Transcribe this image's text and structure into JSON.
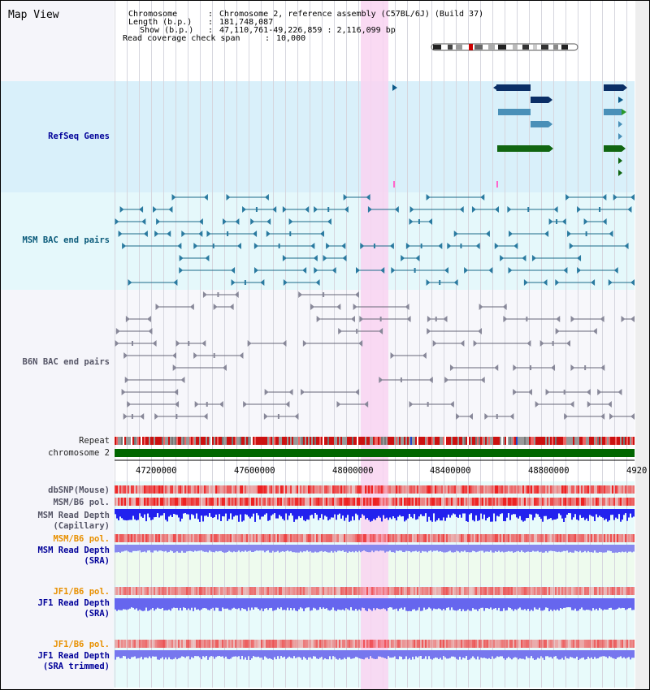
{
  "view_title": "Map View",
  "header": {
    "chromosome_key": "Chromosome",
    "chromosome_value": "Chromosome 2, reference assembly (C57BL/6J) (Build 37)",
    "length_key": "Length (b.p.)",
    "length_value": "181,748,087",
    "show_key": "Show (b.p.)",
    "show_value": "47,110,761-49,226,859 : 2,116,099 bp",
    "read_cov_key": "Read coverage check span",
    "read_cov_value": "10,000"
  },
  "tracks": {
    "refseq": "RefSeq Genes",
    "msm_bac": "MSM BAC end pairs",
    "b6n_bac": "B6N BAC end pairs",
    "repeat": "Repeat",
    "chromosome": "chromosome 2",
    "dbsnp": "dbSNP(Mouse)",
    "msm_b6_pol_1": "MSM/B6 pol.",
    "msm_read_depth_cap_1": "MSM Read Depth",
    "msm_read_depth_cap_2": "(Capillary)",
    "msm_b6_pol_2": "MSM/B6 pol.",
    "msm_read_depth_sra_1": "MSM Read Depth",
    "msm_read_depth_sra_2": "(SRA)",
    "jf1_b6_pol_1": "JF1/B6 pol.",
    "jf1_read_depth_sra_1": "JF1 Read Depth",
    "jf1_read_depth_sra_2": "(SRA)",
    "jf1_b6_pol_2": "JF1/B6 pol.",
    "jf1_read_depth_trim_1": "JF1 Read Depth",
    "jf1_read_depth_trim_2": "(SRA trimmed)"
  },
  "axis": {
    "ticks": [
      "47200000",
      "47600000",
      "48000000",
      "48400000",
      "48800000",
      "4920"
    ]
  },
  "colors": {
    "refseq_bg": "#d9f0fa",
    "msm_bg": "#e5f8fb",
    "b6n_bg": "#f5f5fa",
    "highlight": "#f9d4f1",
    "chromosome": "#006600",
    "depth_blue": "#2222ee",
    "depth_light": "#7777ee",
    "pol_red": "#ee3333"
  }
}
